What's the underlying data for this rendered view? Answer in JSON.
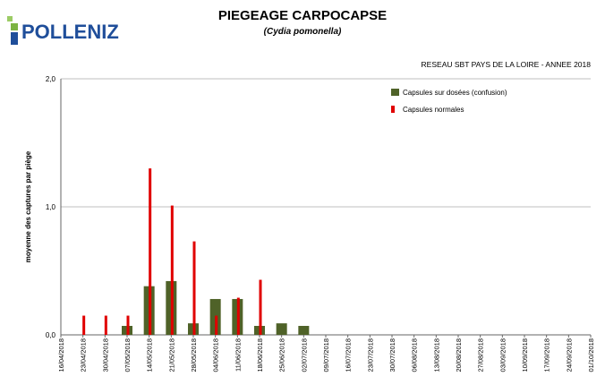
{
  "logo": "POLLENIZ",
  "chart_data": {
    "type": "bar",
    "title": "PIEGEAGE CARPOCAPSE",
    "subtitle": "(Cydia pomonella)",
    "annotation": "RESEAU SBT PAYS DE LA LOIRE - ANNEE 2018",
    "y_label": "moyenne des captures par piège",
    "categories": [
      "16/04/2018",
      "23/04/2018",
      "30/04/2018",
      "07/05/2018",
      "14/05/2018",
      "21/05/2018",
      "28/05/2018",
      "04/06/2018",
      "11/06/2018",
      "18/06/2018",
      "25/06/2018",
      "02/07/2018",
      "09/07/2018",
      "16/07/2018",
      "23/07/2018",
      "30/07/2018",
      "06/08/2018",
      "13/08/2018",
      "20/08/2018",
      "27/08/2018",
      "03/09/2018",
      "10/09/2018",
      "17/09/2018",
      "24/09/2018",
      "01/10/2018"
    ],
    "series": [
      {
        "name": "Capsules sur dosées (confusion)",
        "color": "#4f6228",
        "values": [
          null,
          null,
          null,
          0.07,
          0.38,
          0.42,
          0.09,
          0.28,
          0.28,
          0.07,
          0.09,
          0.07,
          null,
          null,
          null,
          null,
          null,
          null,
          null,
          null,
          null,
          null,
          null,
          null,
          null
        ]
      },
      {
        "name": "Capsules normales",
        "color": "#e00000",
        "values": [
          null,
          0.15,
          0.15,
          0.15,
          1.3,
          1.01,
          0.73,
          0.15,
          0.29,
          0.43,
          null,
          null,
          null,
          null,
          null,
          null,
          null,
          null,
          null,
          null,
          null,
          null,
          null,
          null,
          null
        ]
      }
    ],
    "ylim": [
      0,
      2
    ],
    "yticks": [
      {
        "value": 0,
        "label": "0,0"
      },
      {
        "value": 1,
        "label": "1,0"
      },
      {
        "value": 2,
        "label": "2,0"
      }
    ],
    "grid": true
  }
}
